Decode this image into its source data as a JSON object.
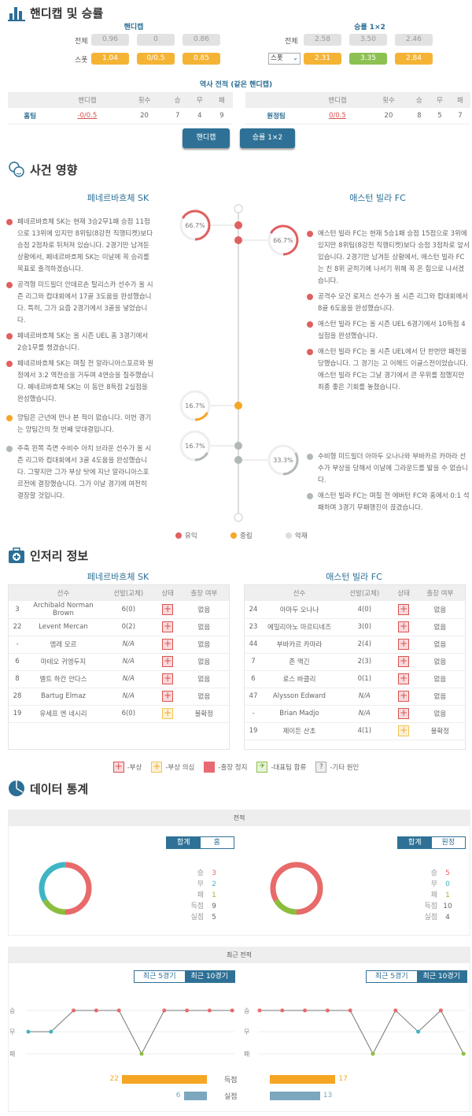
{
  "handicap_section": {
    "title": "핸디캡 및 승률",
    "handicap_label": "핸디캡",
    "odds_label": "승률 1×2",
    "row_all": "전체",
    "row_spot": "스폿",
    "handicap_all": [
      "0.96",
      "0",
      "0.86"
    ],
    "handicap_spot": [
      "1.04",
      "0/0.5",
      "0.85"
    ],
    "odds_all": [
      "2.58",
      "3.50",
      "2.46"
    ],
    "odds_spot": [
      "2.31",
      "3.35",
      "2.84"
    ],
    "odds_select": "스폿",
    "history_title": "역사 전적 (같은 핸디캡)",
    "history_headers": [
      "",
      "핸디캡",
      "횟수",
      "승",
      "무",
      "패"
    ],
    "home": {
      "team": "홈팀",
      "handicap": "-0/0.5",
      "count": "20",
      "w": "7",
      "d": "4",
      "l": "9"
    },
    "away": {
      "team": "원정팀",
      "handicap": "0/0.5",
      "count": "20",
      "w": "8",
      "d": "5",
      "l": "7"
    },
    "btn_handicap": "핸디캡",
    "btn_odds": "승률 1×2"
  },
  "impact": {
    "title": "사건 영향",
    "home_team": "페네르바흐체 SK",
    "away_team": "애스턴 빌라 FC",
    "groups": [
      {
        "kind": "positive",
        "color": "#e06060",
        "home_pct": "66.7%",
        "away_pct": "66.7%",
        "home_frac": 0.667,
        "away_frac": 0.667,
        "home": [
          "페네르바흐체 SK는 현재 3승2무1패 승점 11점으로 13위에 있지만 8위팀(8강전 직행티켓)보다 승점 2점차로 뒤처져 있습니다. 2경기만 남겨둔 상황에서, 페네르바흐체 SK는 이날에 꼭 승리를 목표로 출격하겠습니다.",
          "공격형 미드필더 안데르손 탈리스카 선수가 올 시즌 리그와 컵대회에서 17골 3도움을 완성했습니다. 특히, 그가 요즘 2경기에서 3골을 넣었습니다.",
          "페네르바흐체 SK는 올 시즌 UEL 홈 3경기에서 2승1무를 챙겼습니다.",
          "페네르바흐체 SK는 며칠 전 알라니아스포르와 원정에서 3:2 역전승을 거두며 4연승을 질주했습니다. 페네르바흐체 SK는 이 동안 8득점 2실점을 완성했습니다."
        ],
        "away": [
          "애스턴 빌라 FC는 현재 5승1패 승점 15점으로 3위에 있지만 8위팀(8강전 직행티켓)보다 승점 3점차로 앞서 있습니다. 2경기만 남겨둔 상황에서, 애스턴 빌라 FC는 친 8위 굳히기에 나서기 위해 꼭 온 힘으로 나서겠습니다.",
          "공격수 모건 로저스 선수가 올 시즌 리그와 컵대회에서 8골 6도움을 완성했습니다.",
          "애스턴 빌라 FC는 올 시즌 UEL 6경기에서 10득점 4실점을 완성했습니다.",
          "애스턴 빌라 FC는 올 시즌 UEL에서 단 한번만 패전을 당했습니다. 그 경기는 고 어헤드 이글스전이었습니다. 애스턴 빌라 FC는 그날 경기에서 큰 우위를 점했지만 최종 좋은 기회를 놓쳤습니다."
        ]
      },
      {
        "kind": "neutral",
        "color": "#f5a623",
        "home_pct": "16.7%",
        "home_frac": 0.167,
        "home": [
          "양팀은 근년에 만나 본 적이 없습니다. 이번 경기는 양팀간의 첫 번째 맞대결입니다."
        ]
      },
      {
        "kind": "negative",
        "color": "#b0b8b8",
        "home_pct": "16.7%",
        "away_pct": "33.3%",
        "home_frac": 0.167,
        "away_frac": 0.333,
        "home": [
          "주축 왼쪽 측면 수비수 아치 브라운 선수가 올 시즌 리그와 컵대회에서 3골 4도움을 완성했습니다. 그렇지만 그가 부상 탓에 지난 알라니아스포르전에 결장했습니다. 그가 이날 경기에 여전히 결장할 것입니다."
        ],
        "away": [
          "수비형 미드필더 아마두 오나나와 부바카르 카마라 선수가 부상을 당해서 이날에 그라운드를 밟을 수 없습니다.",
          "애스턴 빌라 FC는 며칠 전 에버턴 FC와 홈에서 0:1 석패하며 3경기 무패행진이 끊겼습니다."
        ]
      }
    ],
    "legend": [
      "유익",
      "중립",
      "악재"
    ]
  },
  "injury": {
    "title": "인저리 정보",
    "headers": [
      "선수",
      "선발(교체)",
      "상태",
      "출장 여부"
    ],
    "home_team": "페네르바흐체 SK",
    "away_team": "애스턴 빌라 FC",
    "home": [
      [
        "3",
        "Archibald Norman Brown",
        "6(0)",
        "injury",
        "없음"
      ],
      [
        "22",
        "Levent Mercan",
        "0(2)",
        "injury",
        "없음"
      ],
      [
        "-",
        "엠레 모르",
        "N/A",
        "injury",
        "없음"
      ],
      [
        "6",
        "마테오 귀엥두지",
        "N/A",
        "injury",
        "없음"
      ],
      [
        "8",
        "멜트 하칸 안다스",
        "N/A",
        "injury",
        "없음"
      ],
      [
        "28",
        "Bartug Elmaz",
        "N/A",
        "injury",
        "없음"
      ],
      [
        "19",
        "유세프 엔 네시리",
        "6(0)",
        "doubtful",
        "불확정"
      ]
    ],
    "away": [
      [
        "24",
        "아마두 오나나",
        "4(0)",
        "injury",
        "없음"
      ],
      [
        "23",
        "에밀리아노 마르티네즈",
        "3(0)",
        "injury",
        "없음"
      ],
      [
        "44",
        "부바카르 카마라",
        "2(4)",
        "injury",
        "없음"
      ],
      [
        "7",
        "존 맥긴",
        "2(3)",
        "injury",
        "없음"
      ],
      [
        "6",
        "로스 바클리",
        "0(1)",
        "injury",
        "없음"
      ],
      [
        "47",
        "Alysson Edward",
        "N/A",
        "injury",
        "없음"
      ],
      [
        "-",
        "Brian Madjo",
        "N/A",
        "injury",
        "없음"
      ],
      [
        "19",
        "제이든 산초",
        "4(1)",
        "doubtful",
        "불확정"
      ]
    ],
    "legend": [
      "-부상",
      "-부상 의심",
      "-출장 정지",
      "-대표팀 합류",
      "-기타 원인"
    ]
  },
  "stats": {
    "title": "데이터 통계",
    "record_header": "전적",
    "home_toggle": [
      "합계",
      "홈"
    ],
    "away_toggle": [
      "합계",
      "원정"
    ],
    "labels": [
      "승",
      "무",
      "패",
      "득점",
      "실점"
    ],
    "home_values": [
      "3",
      "2",
      "1",
      "9",
      "5"
    ],
    "away_values": [
      "5",
      "0",
      "1",
      "10",
      "4"
    ],
    "colors": {
      "win": "#e86a6a",
      "draw": "#3fb5c4",
      "loss": "#8cbd3c",
      "scored": "#f5a623",
      "conceded": "#7ba7bf"
    },
    "recent_header": "최근 전적",
    "recent_toggle": [
      "최근 5경기",
      "최근 10경기"
    ],
    "result_axis": [
      "승",
      "무",
      "패"
    ],
    "home_recent": [
      "무",
      "무",
      "승",
      "승",
      "승",
      "패",
      "승",
      "승",
      "승",
      "승"
    ],
    "away_recent": [
      "승",
      "승",
      "승",
      "승",
      "승",
      "패",
      "승",
      "무",
      "승",
      "패"
    ],
    "scored_label": "득점",
    "conceded_label": "실점",
    "home_scored": "22",
    "home_conceded": "6",
    "away_scored": "17",
    "away_conceded": "13"
  }
}
